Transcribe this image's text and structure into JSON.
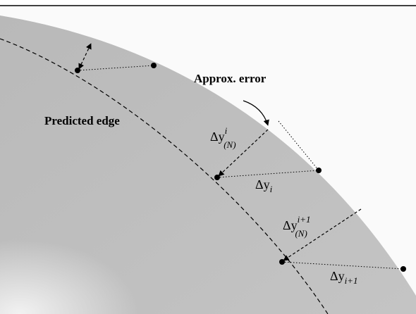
{
  "labels": {
    "approx_error": "Approx. error",
    "predicted_edge": "Predicted edge"
  },
  "symbols": [
    {
      "base": "Δy",
      "sup": "i",
      "sub": "(N)"
    },
    {
      "base": "Δy",
      "sub": "i"
    },
    {
      "base": "Δy",
      "sup": "i+1",
      "sub": "(N)"
    },
    {
      "base": "Δy",
      "sub": "i+1"
    }
  ]
}
